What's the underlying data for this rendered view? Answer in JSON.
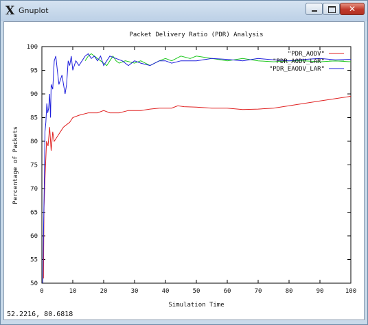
{
  "window": {
    "title": "Gnuplot",
    "icon": "x11-icon",
    "icon_glyph": "X",
    "close_glyph": "✕"
  },
  "status": {
    "coords": "52.2216,  80.6818"
  },
  "chart_data": {
    "type": "line",
    "title": "Packet Delivery Ratio (PDR) Analysis",
    "xlabel": "Simulation Time",
    "ylabel": "Percentage of Packets",
    "xlim": [
      0,
      100
    ],
    "ylim": [
      50,
      100
    ],
    "xticks": [
      0,
      10,
      20,
      30,
      40,
      50,
      60,
      70,
      80,
      90,
      100
    ],
    "yticks": [
      50,
      55,
      60,
      65,
      70,
      75,
      80,
      85,
      90,
      95,
      100
    ],
    "legend_position": "top-right",
    "grid": false,
    "series": [
      {
        "name": "\"PDR_AODV\"",
        "color": "#e02020",
        "points": [
          [
            0.5,
            51
          ],
          [
            0.7,
            66
          ],
          [
            1,
            72
          ],
          [
            1.5,
            80
          ],
          [
            2,
            79
          ],
          [
            2.5,
            83
          ],
          [
            3,
            78
          ],
          [
            3.5,
            82
          ],
          [
            4,
            80
          ],
          [
            5,
            81
          ],
          [
            6,
            82
          ],
          [
            7,
            83
          ],
          [
            8,
            83.5
          ],
          [
            9,
            84
          ],
          [
            10,
            85
          ],
          [
            12,
            85.5
          ],
          [
            15,
            86
          ],
          [
            18,
            86
          ],
          [
            20,
            86.5
          ],
          [
            22,
            86
          ],
          [
            25,
            86
          ],
          [
            28,
            86.5
          ],
          [
            30,
            86.5
          ],
          [
            32,
            86.5
          ],
          [
            35,
            86.8
          ],
          [
            38,
            87
          ],
          [
            40,
            87
          ],
          [
            42,
            87
          ],
          [
            44,
            87.5
          ],
          [
            46,
            87.3
          ],
          [
            50,
            87.2
          ],
          [
            55,
            87
          ],
          [
            60,
            87
          ],
          [
            65,
            86.7
          ],
          [
            70,
            86.8
          ],
          [
            75,
            87
          ],
          [
            80,
            87.5
          ],
          [
            85,
            88
          ],
          [
            90,
            88.5
          ],
          [
            95,
            89
          ],
          [
            100,
            89.5
          ]
        ]
      },
      {
        "name": "\"PDR_AODV_LAR\"",
        "color": "#1ec81e",
        "points": [
          [
            14,
            97
          ],
          [
            15,
            98
          ],
          [
            16,
            98.5
          ],
          [
            17,
            98
          ],
          [
            18,
            97.5
          ],
          [
            19,
            97
          ],
          [
            20,
            96.5
          ],
          [
            21,
            96
          ],
          [
            22,
            97
          ],
          [
            23,
            98
          ],
          [
            24,
            97
          ],
          [
            25,
            96.5
          ],
          [
            27,
            97
          ],
          [
            30,
            96.5
          ],
          [
            32,
            97
          ],
          [
            35,
            96
          ],
          [
            38,
            97
          ],
          [
            40,
            97.5
          ],
          [
            42,
            97
          ],
          [
            45,
            98
          ],
          [
            48,
            97.5
          ],
          [
            50,
            98
          ],
          [
            55,
            97.5
          ],
          [
            60,
            97
          ],
          [
            65,
            97.5
          ],
          [
            70,
            97
          ],
          [
            75,
            96.8
          ],
          [
            80,
            97
          ],
          [
            85,
            97
          ],
          [
            90,
            96.8
          ],
          [
            95,
            97
          ],
          [
            100,
            96.8
          ]
        ]
      },
      {
        "name": "\"PDR_EAODV_LAR\"",
        "color": "#1e1edc",
        "points": [
          [
            0.3,
            50
          ],
          [
            0.5,
            60
          ],
          [
            0.8,
            72
          ],
          [
            1,
            82
          ],
          [
            1.3,
            84
          ],
          [
            1.6,
            88
          ],
          [
            1.9,
            86
          ],
          [
            2.2,
            87
          ],
          [
            2.5,
            90
          ],
          [
            2.8,
            85
          ],
          [
            3,
            92
          ],
          [
            3.5,
            91
          ],
          [
            4,
            97
          ],
          [
            4.5,
            98
          ],
          [
            5,
            95
          ],
          [
            5.5,
            92
          ],
          [
            6,
            93
          ],
          [
            6.5,
            94
          ],
          [
            7,
            92
          ],
          [
            7.5,
            90
          ],
          [
            8,
            92
          ],
          [
            8.5,
            97
          ],
          [
            9,
            96
          ],
          [
            9.5,
            98
          ],
          [
            10,
            95
          ],
          [
            11,
            97
          ],
          [
            12,
            96
          ],
          [
            13,
            97
          ],
          [
            14,
            98
          ],
          [
            15,
            98.5
          ],
          [
            16,
            97.5
          ],
          [
            17,
            98
          ],
          [
            18,
            97
          ],
          [
            19,
            98
          ],
          [
            20,
            96
          ],
          [
            21,
            97
          ],
          [
            22,
            98
          ],
          [
            24,
            97.5
          ],
          [
            26,
            97
          ],
          [
            28,
            96
          ],
          [
            30,
            97
          ],
          [
            32,
            96.5
          ],
          [
            35,
            96
          ],
          [
            38,
            97
          ],
          [
            40,
            97
          ],
          [
            42,
            96.5
          ],
          [
            45,
            97
          ],
          [
            50,
            97
          ],
          [
            55,
            97.5
          ],
          [
            60,
            97.3
          ],
          [
            65,
            97
          ],
          [
            70,
            97.5
          ],
          [
            75,
            97.2
          ],
          [
            80,
            97
          ],
          [
            85,
            97.3
          ],
          [
            90,
            97.5
          ],
          [
            95,
            97.2
          ],
          [
            100,
            97.3
          ]
        ]
      }
    ]
  }
}
